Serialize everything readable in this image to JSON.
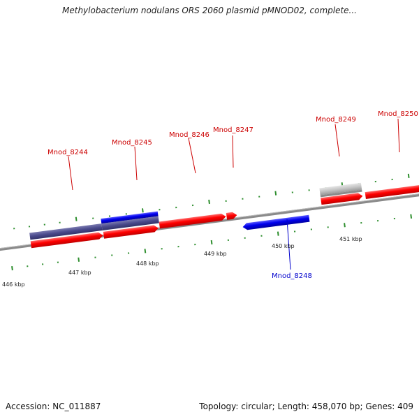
{
  "title": "Methylobacterium nodulans ORS 2060 plasmid pMNOD02, complete...",
  "footer": {
    "accession": "Accession: NC_011887",
    "summary": "Topology: circular; Length: 458,070 bp; Genes: 409"
  },
  "colors": {
    "forward_gene": "#ff0000",
    "reverse_gene": "#0000ee",
    "cds_region": "#4a4a8c",
    "pseudo_gene": "#c0c0c0",
    "label_forward": "#cc0000",
    "label_reverse": "#0000cc",
    "tick": "#339933",
    "backbone": "#888888"
  },
  "scale_labels": [
    "446 kbp",
    "447 kbp",
    "448 kbp",
    "449 kbp",
    "450 kbp",
    "451 kbp"
  ],
  "genes": [
    {
      "name": "Mnod_8244",
      "strand": "+"
    },
    {
      "name": "Mnod_8245",
      "strand": "+"
    },
    {
      "name": "Mnod_8246",
      "strand": "+"
    },
    {
      "name": "Mnod_8247",
      "strand": "+"
    },
    {
      "name": "Mnod_8248",
      "strand": "-"
    },
    {
      "name": "Mnod_8249",
      "strand": "+"
    },
    {
      "name": "Mnod_8250",
      "strand": "+"
    }
  ]
}
